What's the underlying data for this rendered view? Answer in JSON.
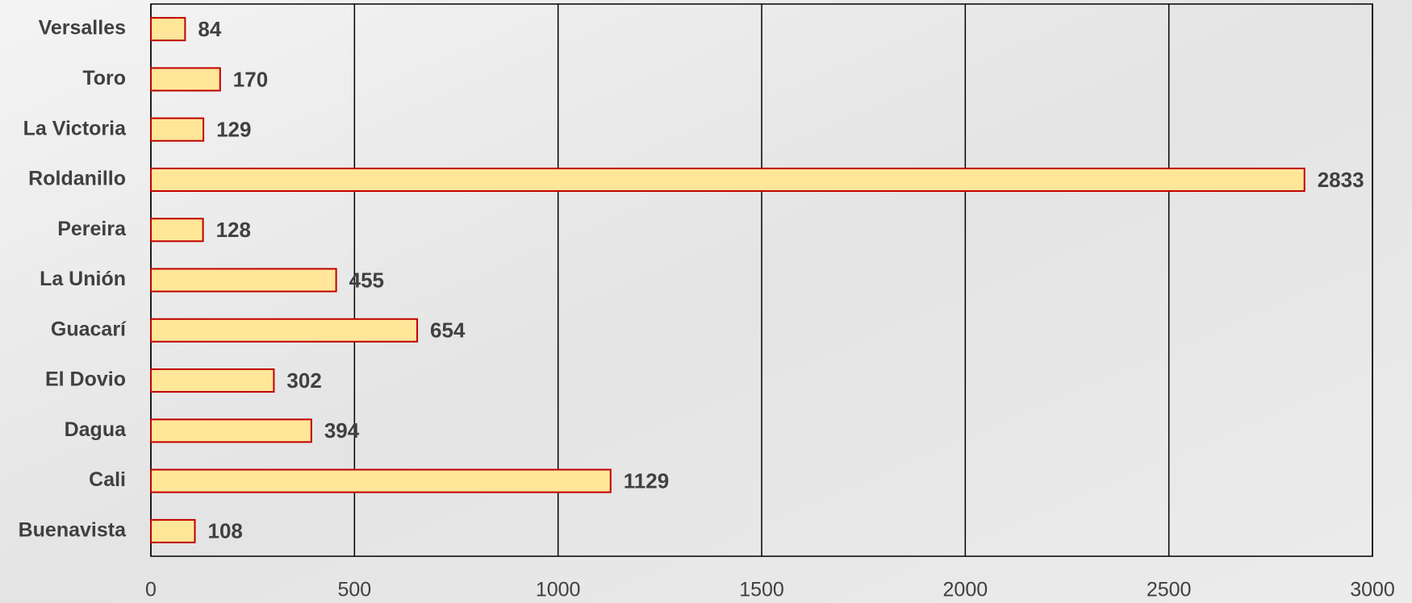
{
  "chart_data": {
    "type": "bar",
    "orientation": "horizontal",
    "categories": [
      "Versalles",
      "Toro",
      "La Victoria",
      "Roldanillo",
      "Pereira",
      "La Unión",
      "Guacarí",
      "El Dovio",
      "Dagua",
      "Cali",
      "Buenavista"
    ],
    "values": [
      84,
      170,
      129,
      2833,
      128,
      455,
      654,
      302,
      394,
      1129,
      108
    ],
    "color": "#ffe699",
    "edge_color": "#c00000",
    "xlim": [
      0,
      3000
    ],
    "xticks": [
      0,
      500,
      1000,
      1500,
      2000,
      2500,
      3000
    ],
    "grid": true
  }
}
